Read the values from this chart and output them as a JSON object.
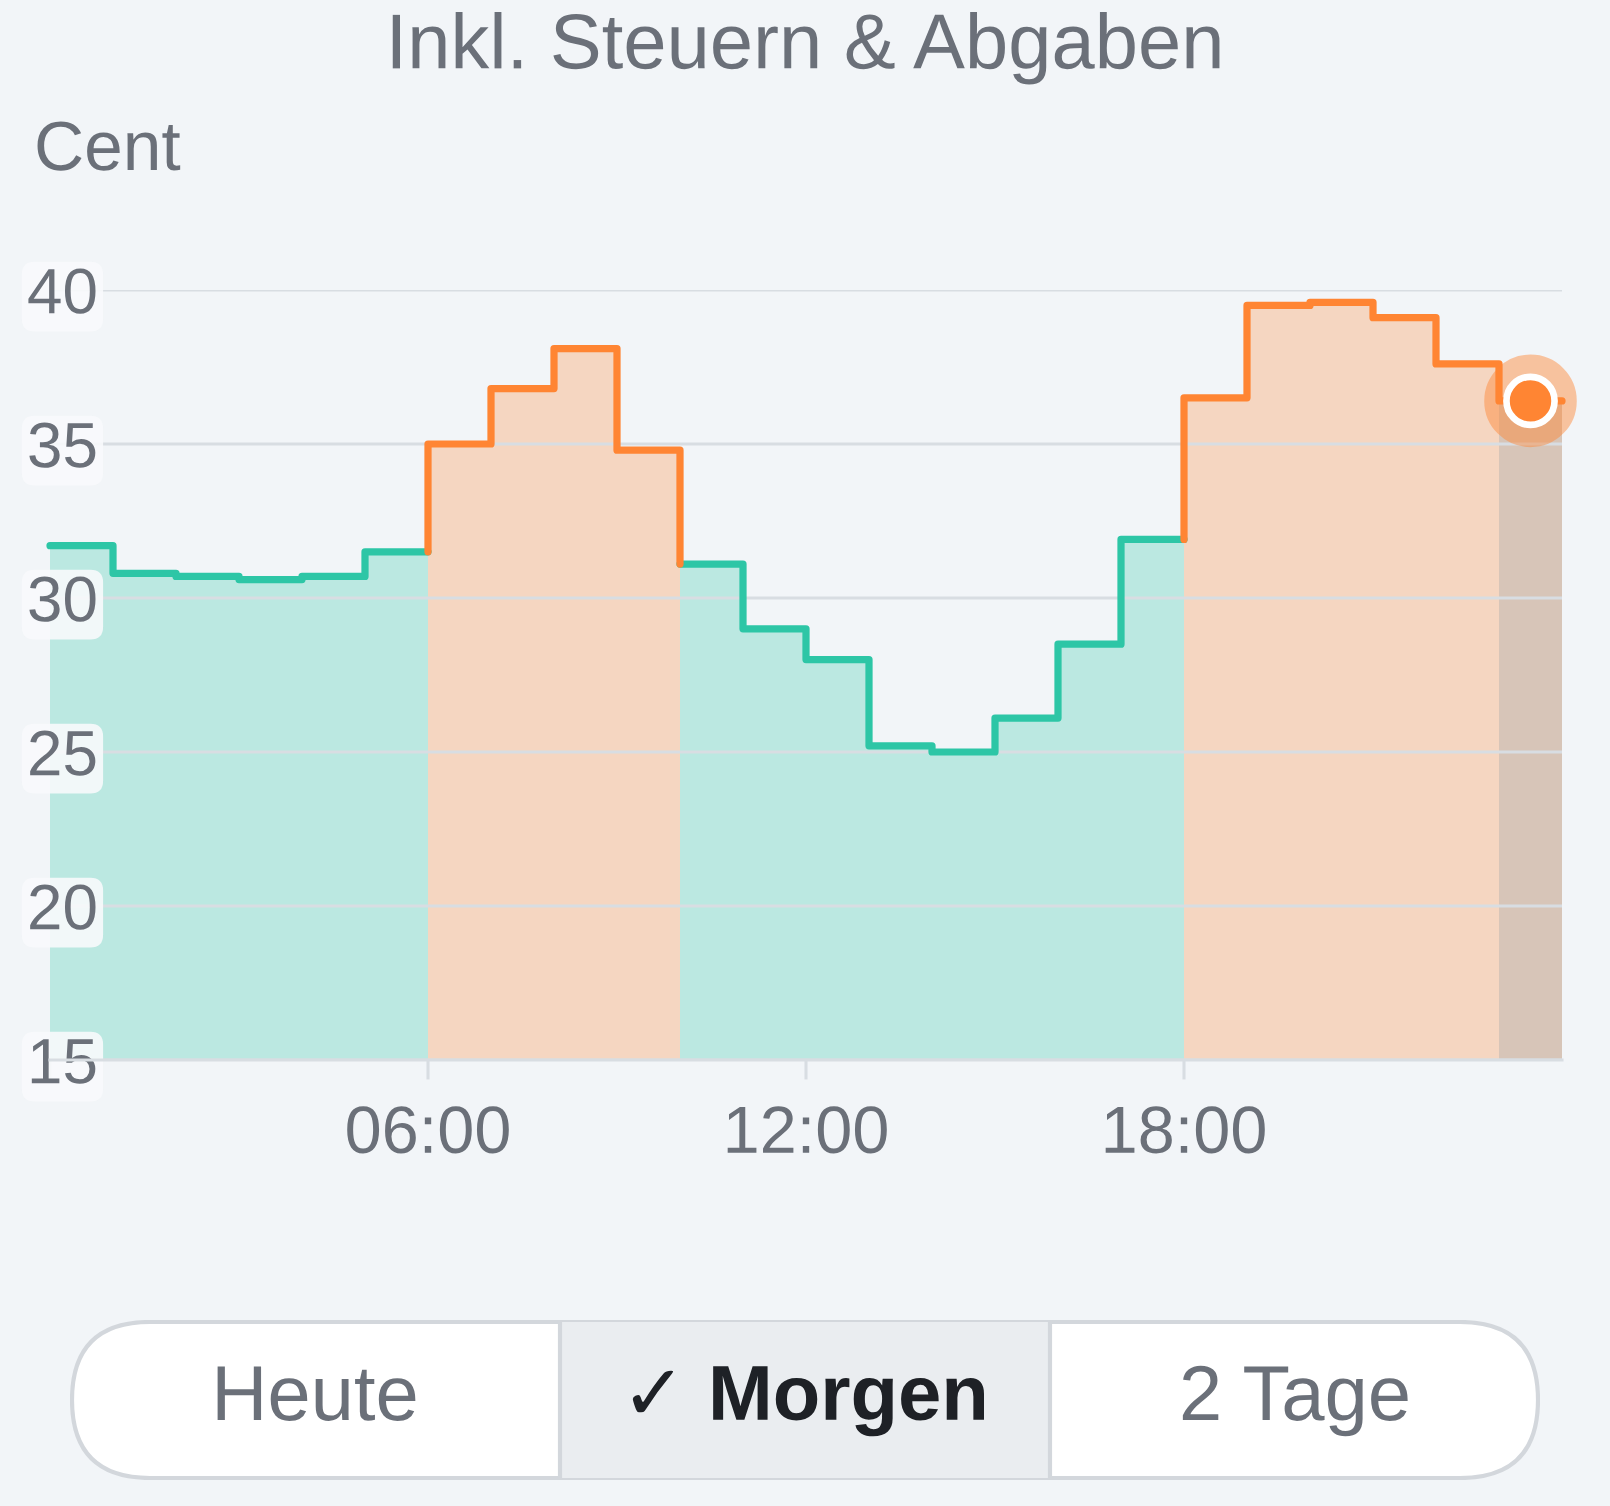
{
  "chart_data": {
    "type": "area",
    "title": "Inkl. Steuern & Abgaben",
    "ylabel": "Cent",
    "series": [
      {
        "color": "#2dc6a6",
        "x": [
          0,
          1,
          1,
          2,
          2,
          3,
          3,
          4,
          4,
          5,
          5,
          6,
          8,
          10,
          11,
          11,
          12,
          12,
          13,
          13,
          14,
          14,
          15,
          15,
          16,
          16,
          17,
          17,
          18
        ],
        "values": [
          31.7,
          31.7,
          30.8,
          30.8,
          30.7,
          30.7,
          30.6,
          30.6,
          30.7,
          30.7,
          31.5,
          31.5,
          null,
          31.1,
          31.1,
          29.0,
          29.0,
          28.0,
          28.0,
          25.2,
          25.2,
          25.0,
          25.0,
          26.1,
          26.1,
          28.5,
          28.5,
          31.9,
          31.9
        ]
      },
      {
        "color": "#ff8533",
        "x": [
          6,
          6,
          7,
          7,
          8,
          8,
          9,
          9,
          10,
          10,
          14,
          18,
          18,
          19,
          19,
          20,
          20,
          21,
          21,
          22,
          22,
          23,
          23,
          24
        ],
        "values": [
          31.5,
          35.0,
          35.0,
          36.8,
          36.8,
          38.1,
          38.1,
          34.8,
          34.8,
          31.1,
          null,
          31.9,
          36.5,
          36.5,
          39.5,
          39.5,
          39.6,
          39.6,
          39.1,
          39.1,
          37.6,
          37.6,
          36.4,
          36.4
        ]
      },
      {
        "type": "scatter",
        "x": [
          23.5
        ],
        "values": [
          36.4
        ],
        "color": "#ff8533",
        "marker": "circle"
      }
    ],
    "xlim": [
      0,
      24
    ],
    "xticks": [
      {
        "value": 0,
        "label": null
      },
      {
        "value": 6,
        "label": "06:00"
      },
      {
        "value": 12,
        "label": "12:00"
      },
      {
        "value": 18,
        "label": "18:00"
      }
    ],
    "ylim": [
      15,
      40
    ],
    "yticks": [
      15,
      20,
      25,
      30,
      35,
      40
    ],
    "grid": "y",
    "bands": [
      {
        "axis": "x",
        "from": 23,
        "to": 24,
        "color": "#8a9ba3"
      }
    ],
    "annotations": [
      "Heute",
      "✓ Morgen",
      "2 Tage"
    ]
  }
}
